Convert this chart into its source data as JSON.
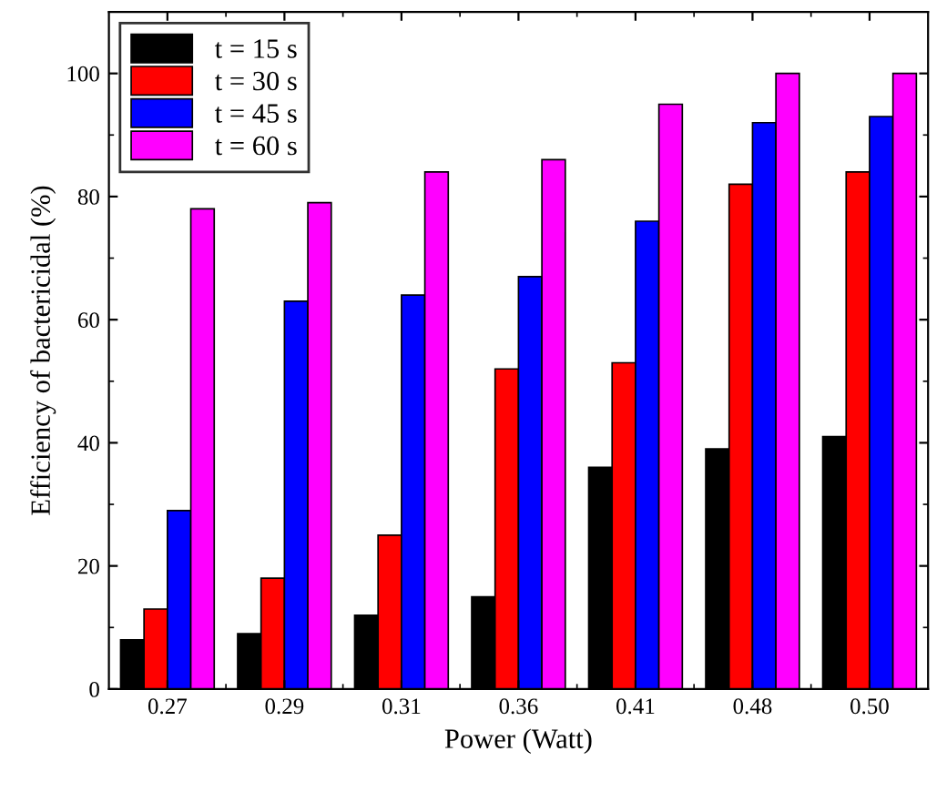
{
  "chart_data": {
    "type": "bar",
    "xlabel": "Power (Watt)",
    "ylabel": "Efficiency of bactericidal (%)",
    "categories": [
      "0.27",
      "0.29",
      "0.31",
      "0.36",
      "0.41",
      "0.48",
      "0.50"
    ],
    "series": [
      {
        "name": "t = 15 s",
        "color": "#000000",
        "values": [
          8,
          9,
          12,
          15,
          36,
          39,
          41
        ]
      },
      {
        "name": "t = 30 s",
        "color": "#ff0000",
        "values": [
          13,
          18,
          25,
          52,
          53,
          82,
          84
        ]
      },
      {
        "name": "t = 45 s",
        "color": "#0000ff",
        "values": [
          29,
          63,
          64,
          67,
          76,
          92,
          93
        ]
      },
      {
        "name": "t = 60 s",
        "color": "#ff00ff",
        "values": [
          78,
          79,
          84,
          86,
          95,
          100,
          100
        ]
      }
    ],
    "ylim": [
      0,
      110
    ],
    "yticks": [
      0,
      20,
      40,
      60,
      80,
      100
    ],
    "grid": false,
    "legend": "top left"
  }
}
